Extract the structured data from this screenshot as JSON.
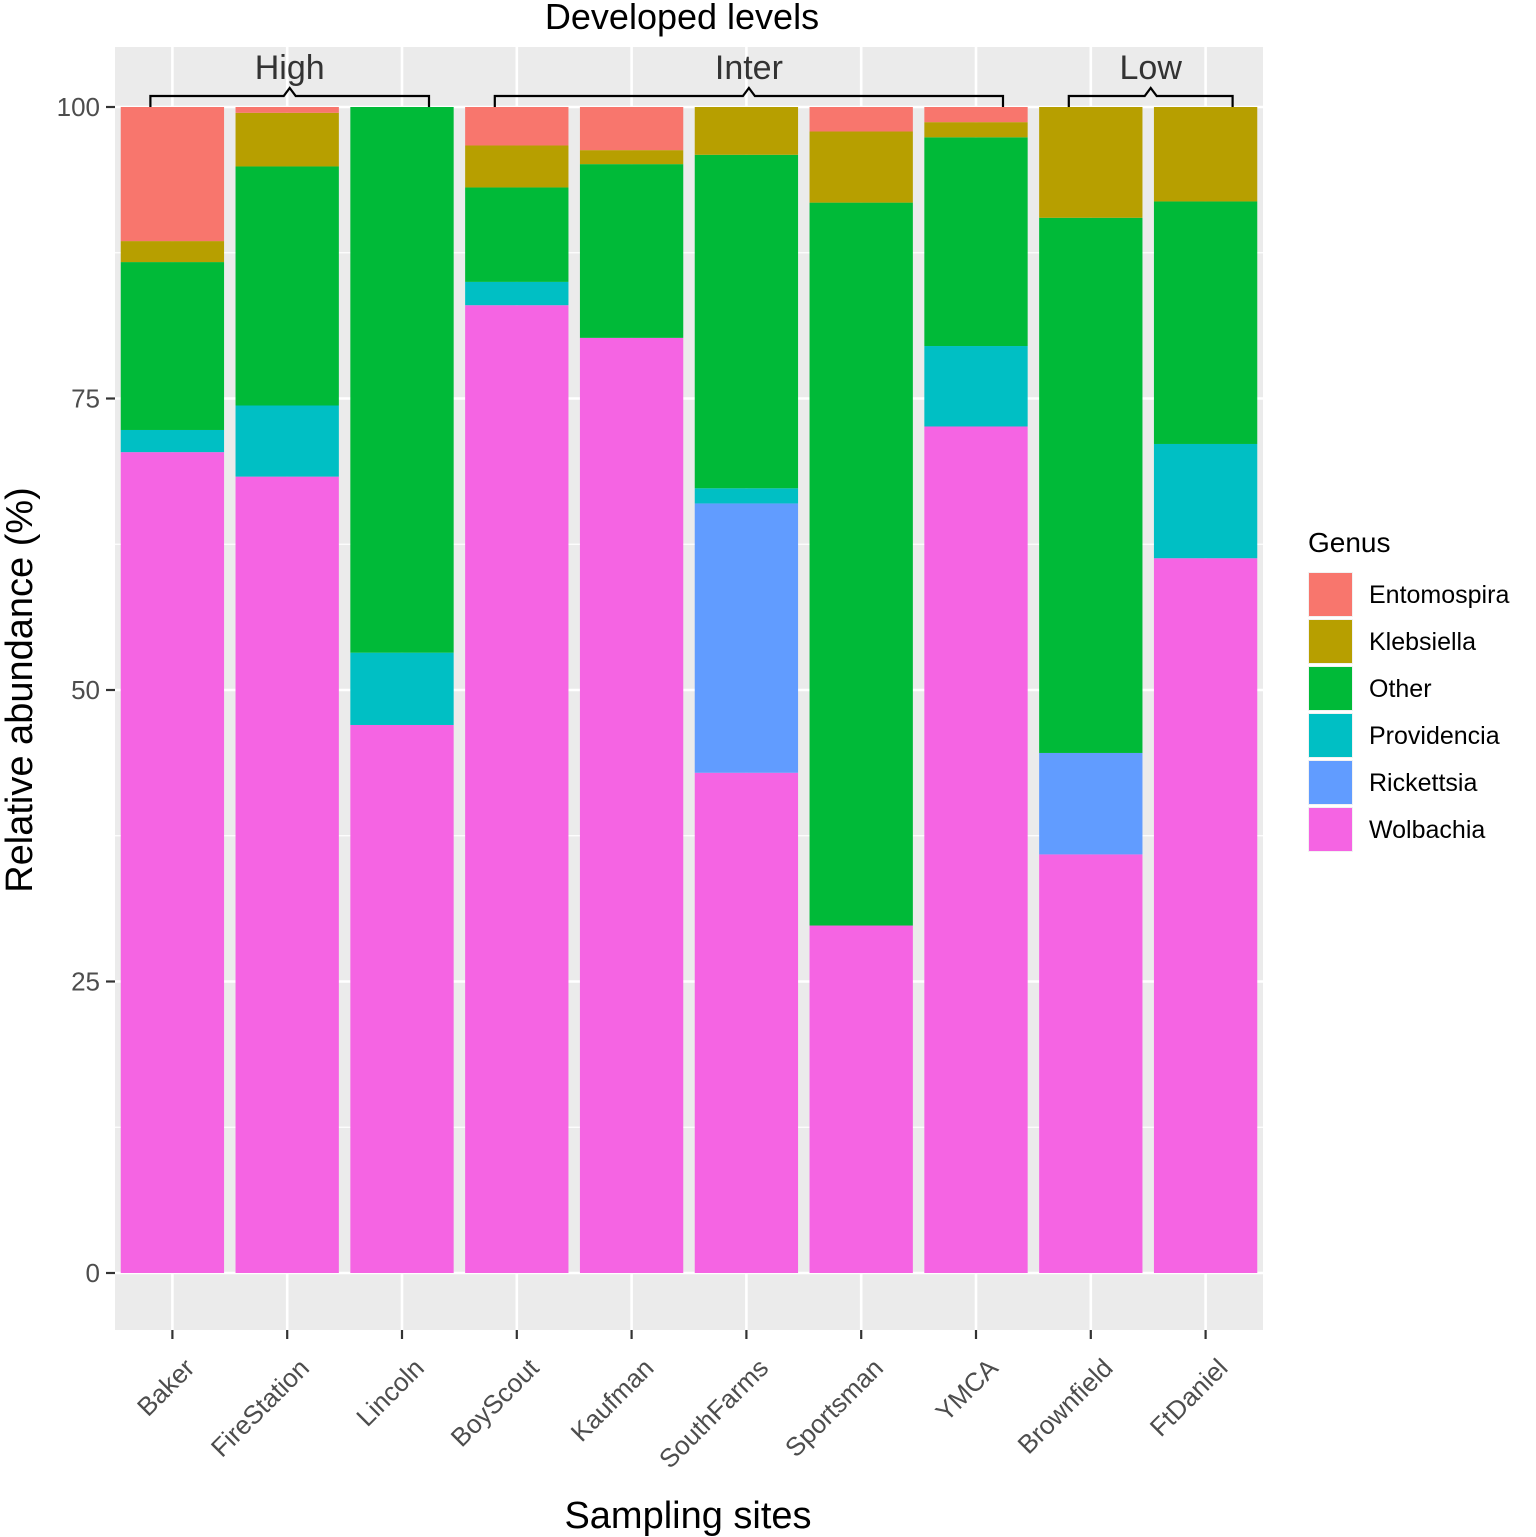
{
  "chart_data": {
    "type": "bar",
    "stacked": true,
    "title": "Developed levels",
    "xlabel": "Sampling sites",
    "ylabel": "Relative abundance (%)",
    "ylim": [
      -5,
      105
    ],
    "yticks": [
      0,
      25,
      50,
      75,
      100
    ],
    "categories": [
      "Baker",
      "FireStation",
      "Lincoln",
      "BoyScout",
      "Kaufman",
      "SouthFarms",
      "Sportsman",
      "YMCA",
      "Brownfield",
      "FtDaniel"
    ],
    "groups": [
      {
        "label": "High",
        "from": "Baker",
        "to": "Lincoln"
      },
      {
        "label": "Inter",
        "from": "BoyScout",
        "to": "YMCA"
      },
      {
        "label": "Low",
        "from": "Brownfield",
        "to": "FtDaniel"
      }
    ],
    "legend": {
      "title": "Genus",
      "position": "right"
    },
    "series": [
      {
        "name": "Wolbachia",
        "color": "#F564E3",
        "values": [
          70.4,
          68.3,
          47.0,
          83.0,
          80.2,
          42.9,
          29.8,
          72.6,
          35.9,
          61.3
        ]
      },
      {
        "name": "Rickettsia",
        "color": "#619CFF",
        "values": [
          0.0,
          0.0,
          0.0,
          0.0,
          0.0,
          23.1,
          0.0,
          0.0,
          8.7,
          0.0
        ]
      },
      {
        "name": "Providencia",
        "color": "#00BFC4",
        "values": [
          1.9,
          6.1,
          6.2,
          2.0,
          0.0,
          1.3,
          0.0,
          6.9,
          0.0,
          9.8
        ]
      },
      {
        "name": "Other",
        "color": "#00BA38",
        "values": [
          14.4,
          20.5,
          46.8,
          8.1,
          14.9,
          28.6,
          62.0,
          17.9,
          45.9,
          20.8
        ]
      },
      {
        "name": "Klebsiella",
        "color": "#B79F00",
        "values": [
          1.8,
          4.6,
          0.0,
          3.6,
          1.2,
          4.1,
          6.1,
          1.3,
          9.5,
          8.1
        ]
      },
      {
        "name": "Entomospira",
        "color": "#F8766D",
        "values": [
          11.5,
          0.5,
          0.0,
          3.3,
          3.7,
          0.0,
          2.1,
          1.3,
          0.0,
          0.0
        ]
      }
    ],
    "legend_order": [
      "Entomospira",
      "Klebsiella",
      "Other",
      "Providencia",
      "Rickettsia",
      "Wolbachia"
    ]
  }
}
